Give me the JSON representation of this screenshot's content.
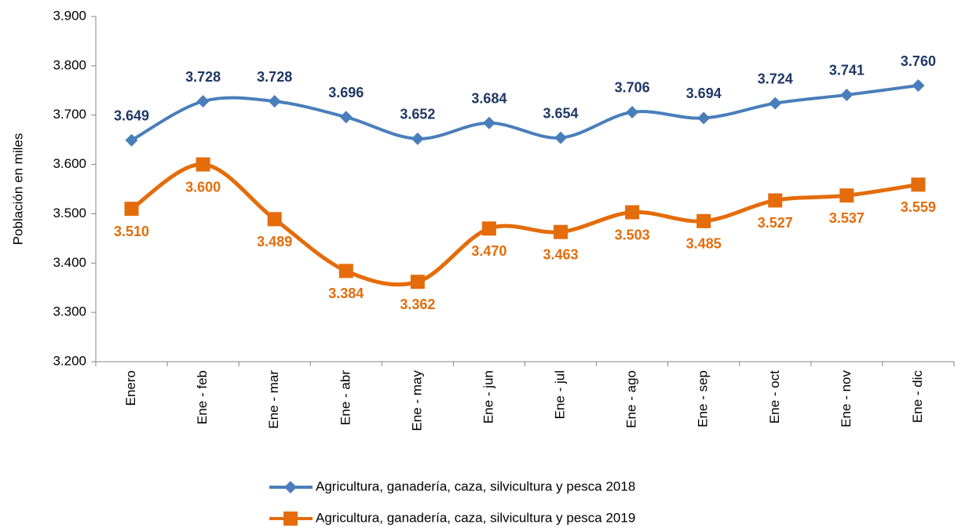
{
  "chart_data": {
    "type": "line",
    "y_label": "Población en miles",
    "categories": [
      "Enero",
      "Ene - feb",
      "Ene - mar",
      "Ene - abr",
      "Ene - may",
      "Ene - jun",
      "Ene - jul",
      "Ene - ago",
      "Ene - sep",
      "Ene - oct",
      "Ene - nov",
      "Ene - dic"
    ],
    "series": [
      {
        "name": "Agricultura, ganadería, caza, silvicultura y pesca 2018",
        "color": "#4a7ebb",
        "label_color": "#1f3864",
        "marker": "diamond",
        "label_position": "above",
        "values": [
          3649,
          3728,
          3728,
          3696,
          3652,
          3684,
          3654,
          3706,
          3694,
          3724,
          3741,
          3760
        ],
        "value_labels": [
          "3.649",
          "3.728",
          "3.728",
          "3.696",
          "3.652",
          "3.684",
          "3.654",
          "3.706",
          "3.694",
          "3.724",
          "3.741",
          "3.760"
        ]
      },
      {
        "name": "Agricultura, ganadería, caza, silvicultura y pesca 2019",
        "color": "#e46c0a",
        "label_color": "#e46c0a",
        "marker": "square",
        "label_position": "below",
        "values": [
          3510,
          3600,
          3489,
          3384,
          3362,
          3470,
          3463,
          3503,
          3485,
          3527,
          3537,
          3559
        ],
        "value_labels": [
          "3.510",
          "3.600",
          "3.489",
          "3.384",
          "3.362",
          "3.470",
          "3.463",
          "3.503",
          "3.485",
          "3.527",
          "3.537",
          "3.559"
        ]
      }
    ],
    "ylim": [
      3200,
      3900
    ],
    "yticks": [
      {
        "value": 3200,
        "label": "3.200"
      },
      {
        "value": 3300,
        "label": "3.300"
      },
      {
        "value": 3400,
        "label": "3.400"
      },
      {
        "value": 3500,
        "label": "3.500"
      },
      {
        "value": 3600,
        "label": "3.600"
      },
      {
        "value": 3700,
        "label": "3.700"
      },
      {
        "value": 3800,
        "label": "3.800"
      },
      {
        "value": 3900,
        "label": "3.900"
      }
    ],
    "grid": false,
    "smooth": true,
    "legend": "bottom"
  }
}
